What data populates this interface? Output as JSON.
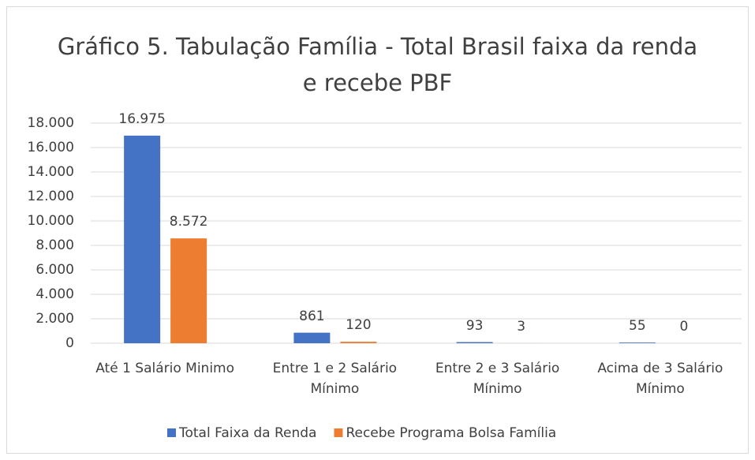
{
  "chart_data": {
    "type": "bar",
    "title": "Gráfico 5. Tabulação Família - Total Brasil faixa da renda e recebe PBF",
    "categories": [
      "Até 1 Salário Minimo",
      "Entre 1 e 2 Salário Mínimo",
      "Entre 2 e 3 Salário Mínimo",
      "Acima de 3 Salário Mínimo"
    ],
    "series": [
      {
        "name": "Total Faixa da Renda",
        "color": "#4472c4",
        "values": [
          16975,
          861,
          93,
          55
        ],
        "value_labels": [
          "16.975",
          "861",
          "93",
          "55"
        ]
      },
      {
        "name": "Recebe Programa Bolsa Família",
        "color": "#ed7d31",
        "values": [
          8572,
          120,
          3,
          0
        ],
        "value_labels": [
          "8.572",
          "120",
          "3",
          "0"
        ]
      }
    ],
    "ylim": [
      0,
      18000
    ],
    "yticks": [
      0,
      {
        "value": 2000,
        "label": "2.000"
      },
      {
        "value": 4000,
        "label": "4.000"
      },
      {
        "value": 6000,
        "label": "6.000"
      },
      {
        "value": 8000,
        "label": "8.000"
      },
      {
        "value": 10000,
        "label": "10.000"
      },
      {
        "value": 12000,
        "label": "12.000"
      },
      {
        "value": 14000,
        "label": "14.000"
      },
      {
        "value": 16000,
        "label": "16.000"
      },
      {
        "value": 18000,
        "label": "18.000"
      }
    ],
    "grid": true,
    "legend": "bottom"
  }
}
